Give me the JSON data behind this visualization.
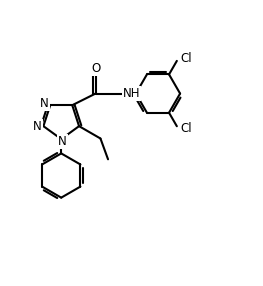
{
  "background_color": "#ffffff",
  "line_color": "#000000",
  "line_width": 1.5,
  "font_size": 8.5,
  "figsize": [
    2.63,
    2.86
  ],
  "dpi": 100,
  "xlim": [
    0,
    10
  ],
  "ylim": [
    0,
    10.86
  ]
}
